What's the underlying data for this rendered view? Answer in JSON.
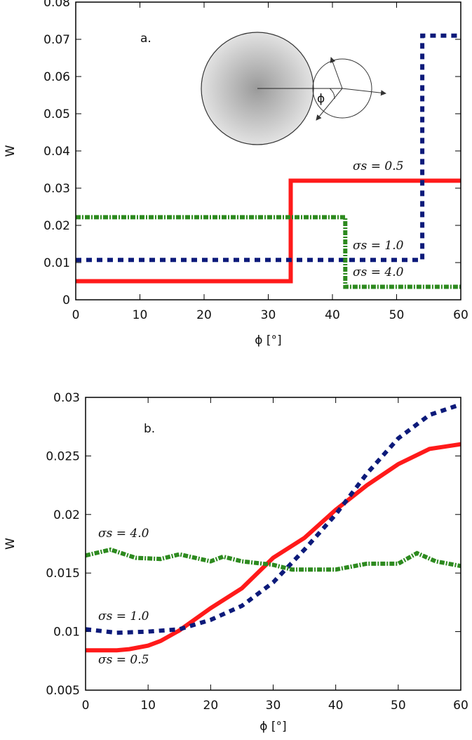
{
  "chart_data": [
    {
      "type": "line",
      "panel_label": "a.",
      "inset_label": "ϕ",
      "xlabel": "ϕ [°]",
      "ylabel": "W",
      "xlim": [
        0,
        60
      ],
      "ylim": [
        0,
        0.08
      ],
      "xticks": [
        0,
        10,
        20,
        30,
        40,
        50,
        60
      ],
      "yticks": [
        0,
        0.01,
        0.02,
        0.03,
        0.04,
        0.05,
        0.06,
        0.07,
        0.08
      ],
      "series": [
        {
          "name": "σs = 0.5",
          "color": "#ff1a1a",
          "style": "solid",
          "x": [
            0,
            33.5,
            33.5,
            60
          ],
          "values": [
            0.005,
            0.005,
            0.032,
            0.032
          ]
        },
        {
          "name": "σs = 1.0",
          "color": "#0c1a7a",
          "style": "dotted",
          "x": [
            0,
            54,
            54,
            60
          ],
          "values": [
            0.0107,
            0.0107,
            0.071,
            0.071
          ]
        },
        {
          "name": "σs = 4.0",
          "color": "#2d8a1f",
          "style": "dashdot",
          "x": [
            0,
            42,
            42,
            60
          ],
          "values": [
            0.0222,
            0.0222,
            0.0035,
            0.0035
          ]
        }
      ]
    },
    {
      "type": "line",
      "panel_label": "b.",
      "xlabel": "ϕ [°]",
      "ylabel": "W",
      "xlim": [
        0,
        60
      ],
      "ylim": [
        0.005,
        0.03
      ],
      "xticks": [
        0,
        10,
        20,
        30,
        40,
        50,
        60
      ],
      "yticks": [
        0.005,
        0.01,
        0.015,
        0.02,
        0.025,
        0.03
      ],
      "series": [
        {
          "name": "σs = 0.5",
          "color": "#ff1a1a",
          "style": "solid",
          "x": [
            0,
            5,
            7,
            10,
            12,
            15,
            20,
            25,
            30,
            35,
            40,
            45,
            50,
            55,
            60
          ],
          "values": [
            0.0084,
            0.0084,
            0.0085,
            0.0088,
            0.0092,
            0.0101,
            0.012,
            0.0137,
            0.0163,
            0.018,
            0.0204,
            0.0225,
            0.0243,
            0.0256,
            0.026
          ]
        },
        {
          "name": "σs = 1.0",
          "color": "#0c1a7a",
          "style": "dotted",
          "x": [
            0,
            5,
            10,
            15,
            20,
            25,
            30,
            35,
            40,
            45,
            50,
            55,
            60
          ],
          "values": [
            0.0102,
            0.0099,
            0.01,
            0.0102,
            0.011,
            0.0122,
            0.0142,
            0.017,
            0.02,
            0.0235,
            0.0265,
            0.0285,
            0.0294
          ]
        },
        {
          "name": "σs = 4.0",
          "color": "#2d8a1f",
          "style": "dashdot",
          "x": [
            0,
            4,
            8,
            12,
            15,
            20,
            22,
            25,
            30,
            33,
            40,
            45,
            50,
            53,
            56,
            60
          ],
          "values": [
            0.0165,
            0.017,
            0.0163,
            0.0162,
            0.0166,
            0.016,
            0.0164,
            0.016,
            0.0157,
            0.0153,
            0.0153,
            0.0158,
            0.0158,
            0.0167,
            0.016,
            0.0156
          ]
        }
      ]
    }
  ]
}
